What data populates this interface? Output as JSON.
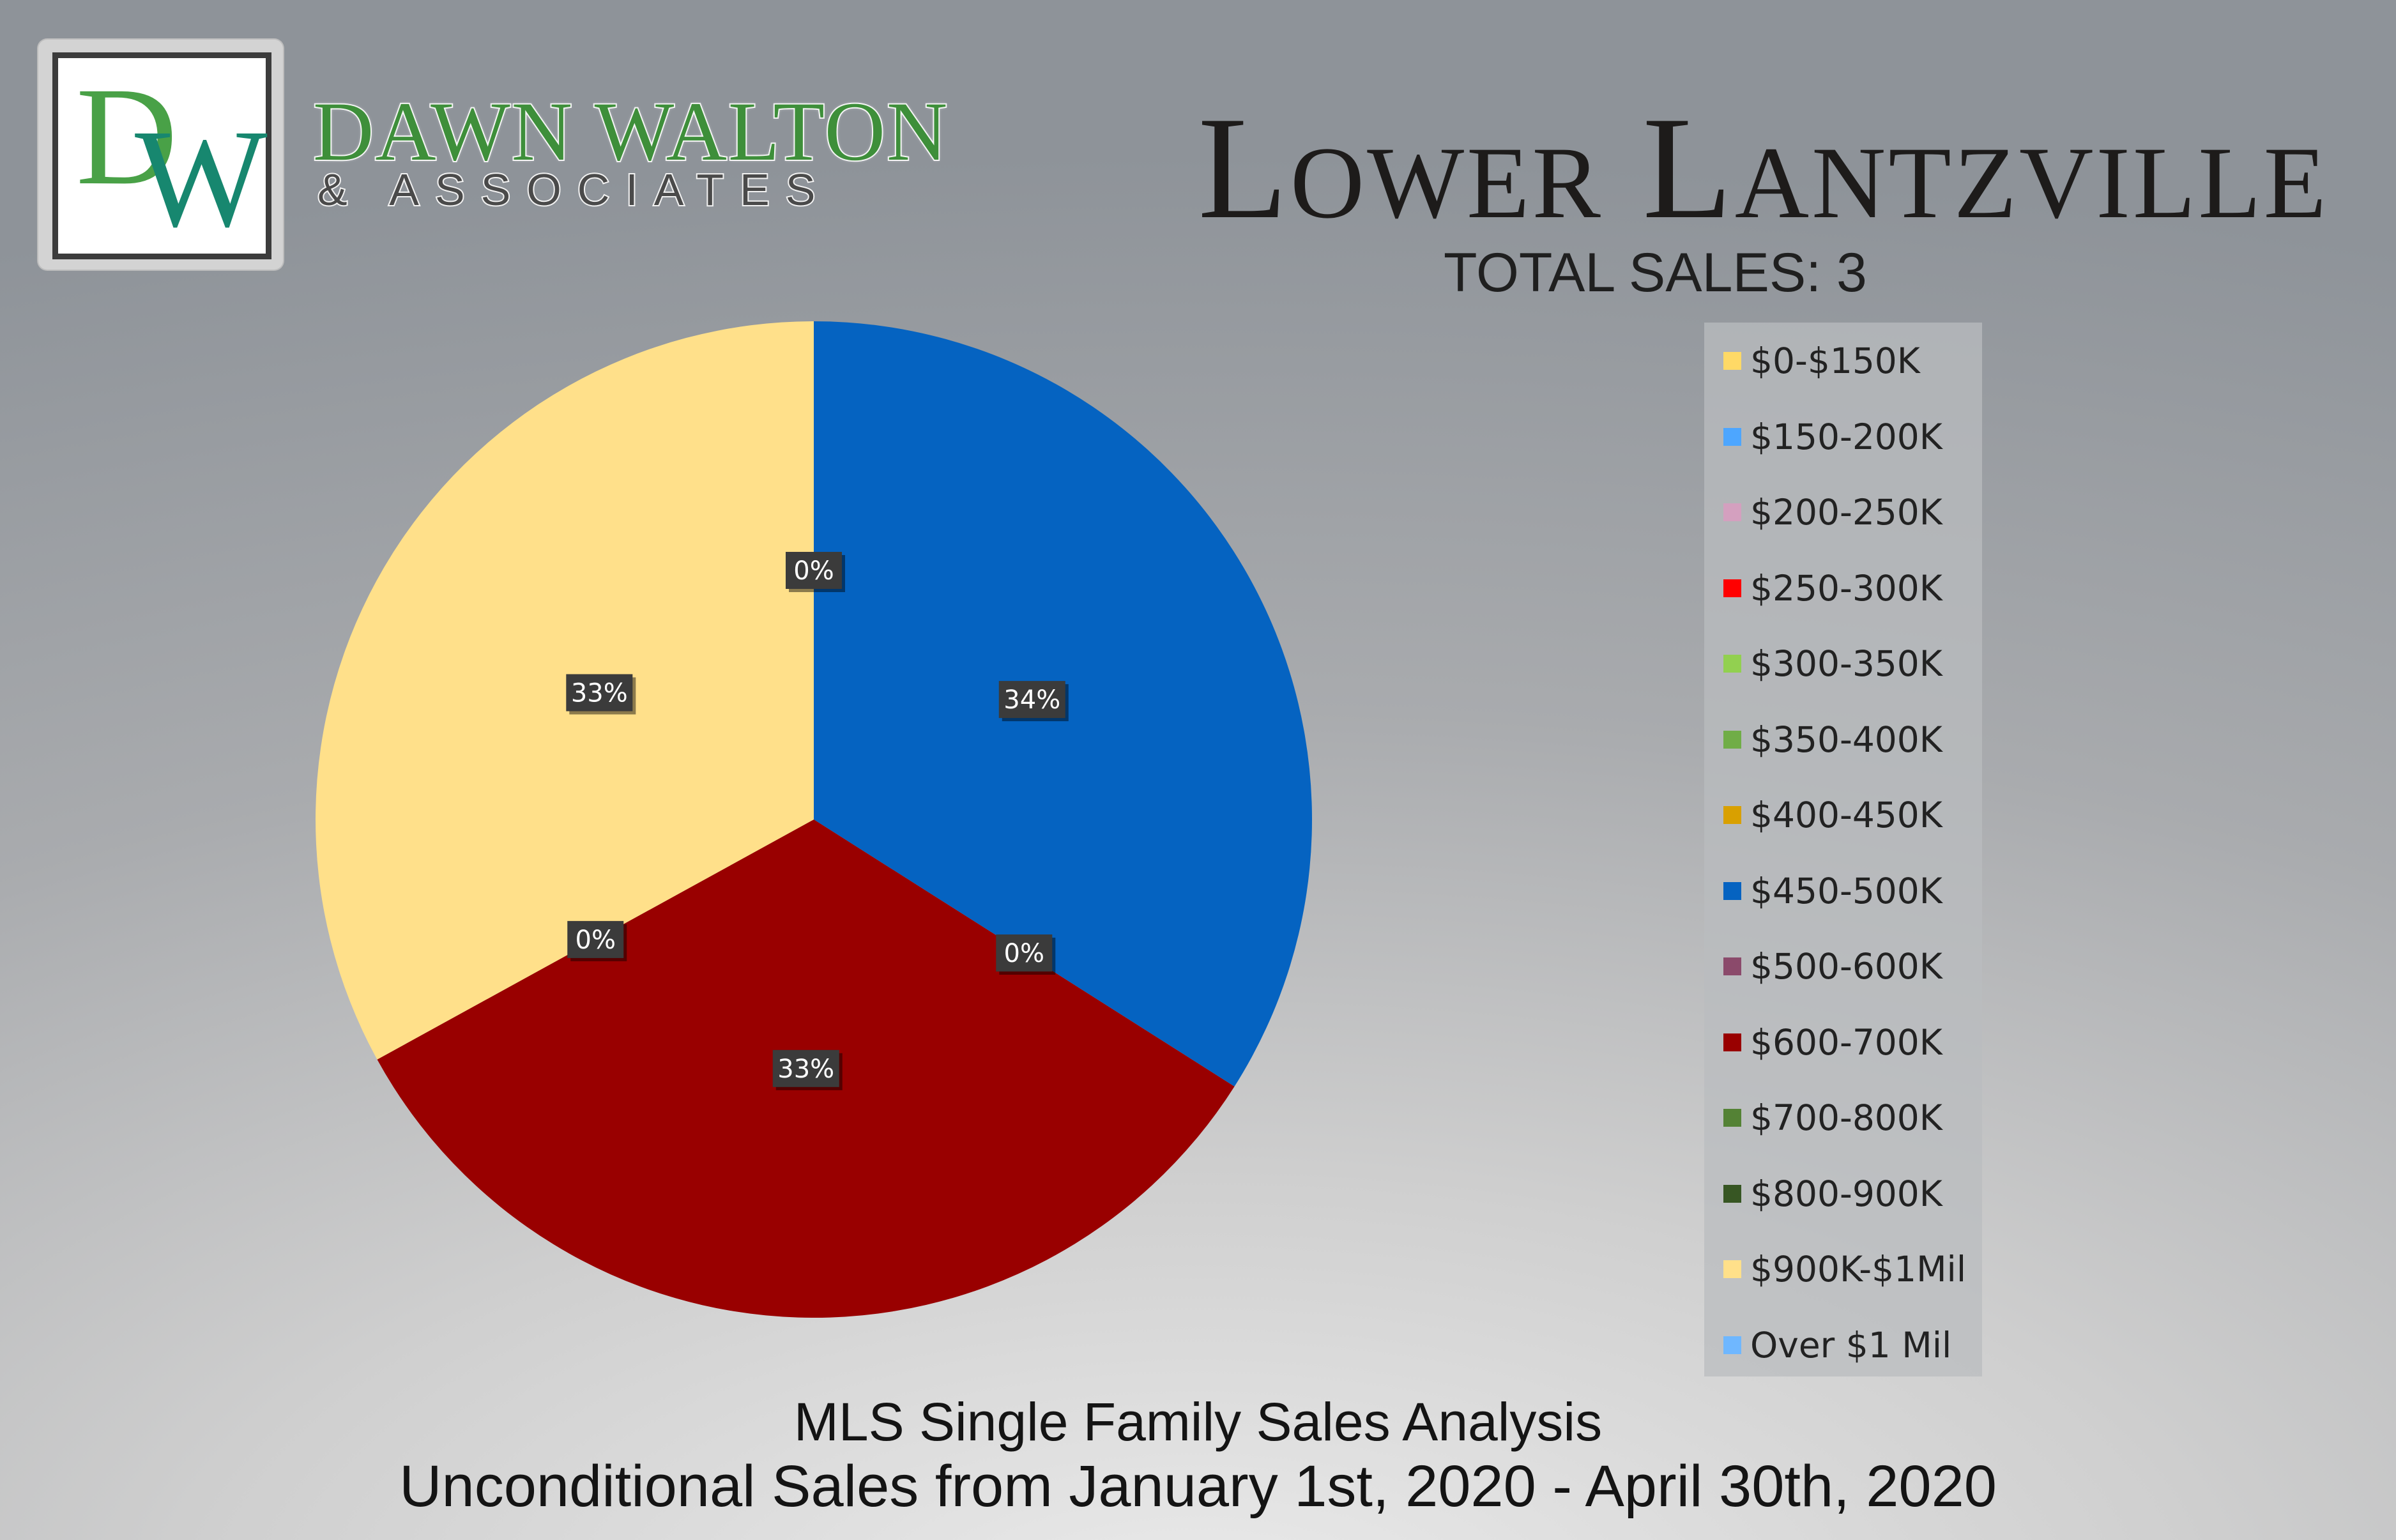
{
  "logo": {
    "initials": [
      "D",
      "W"
    ]
  },
  "brand": {
    "name": "DAWN WALTON",
    "subtitle": "& ASSOCIATES"
  },
  "header": {
    "title": "Lower Lantzville",
    "total_sales": "TOTAL SALES: 3"
  },
  "footer": {
    "line1": "MLS Single Family Sales Analysis",
    "line2": "Unconditional Sales from January 1st, 2020 - April 30th, 2020"
  },
  "chart_data": {
    "type": "pie",
    "categories": [
      "$0-$150K",
      "$150-200K",
      "$200-250K",
      "$250-300K",
      "$300-350K",
      "$350-400K",
      "$400-450K",
      "$450-500K",
      "$500-600K",
      "$600-700K",
      "$700-800K",
      "$800-900K",
      "$900K-$1Mil",
      "Over $1 Mil"
    ],
    "values": [
      0,
      0,
      0,
      0,
      0,
      0,
      0,
      34,
      0,
      33,
      0,
      0,
      33,
      0
    ],
    "colors": [
      "#ffd966",
      "#4da6ff",
      "#d4a0bf",
      "#ff0000",
      "#92d050",
      "#70ad47",
      "#d9a000",
      "#0563c1",
      "#8b4a6b",
      "#990000",
      "#548235",
      "#375623",
      "#ffe08a",
      "#6fb7ff"
    ],
    "data_labels": [
      {
        "category": "$450-500K",
        "text": "34%"
      },
      {
        "category": "$600-700K",
        "text": "33%"
      },
      {
        "category": "$900K-$1Mil",
        "text": "33%"
      },
      {
        "category": "$0-$150K",
        "text": "0%"
      },
      {
        "category": "$500-600K",
        "text": "0%"
      },
      {
        "category": "$700-800K",
        "text": "0%"
      }
    ],
    "legend_position": "right"
  }
}
